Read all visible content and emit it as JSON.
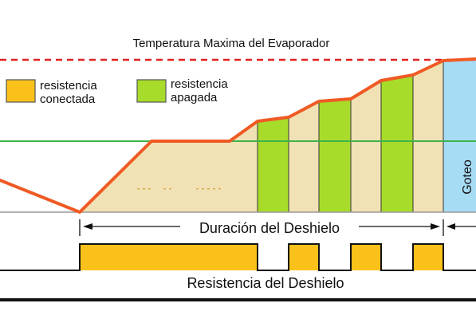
{
  "title": "Temperatura Maxima del Evaporador",
  "legend": [
    {
      "label_line1": "resistencia",
      "label_line2": "conectada",
      "color": "#f9c11a"
    },
    {
      "label_line1": "resistencia",
      "label_line2": "apagada",
      "color": "#a8dc2a"
    }
  ],
  "duration_label": "Duración del Deshielo",
  "drip_label": "Goteo",
  "heater_label": "Resistencia del Deshielo",
  "colors": {
    "max_temp_line": "#e02020",
    "setpoint_line": "#3cb34a",
    "temperature_curve": "#ef5a24",
    "area_fill": "#f1e2b5",
    "drip_fill": "#a7dcf5",
    "heater_on": "#f9c11a",
    "heater_off": "#a8dc2a"
  }
}
